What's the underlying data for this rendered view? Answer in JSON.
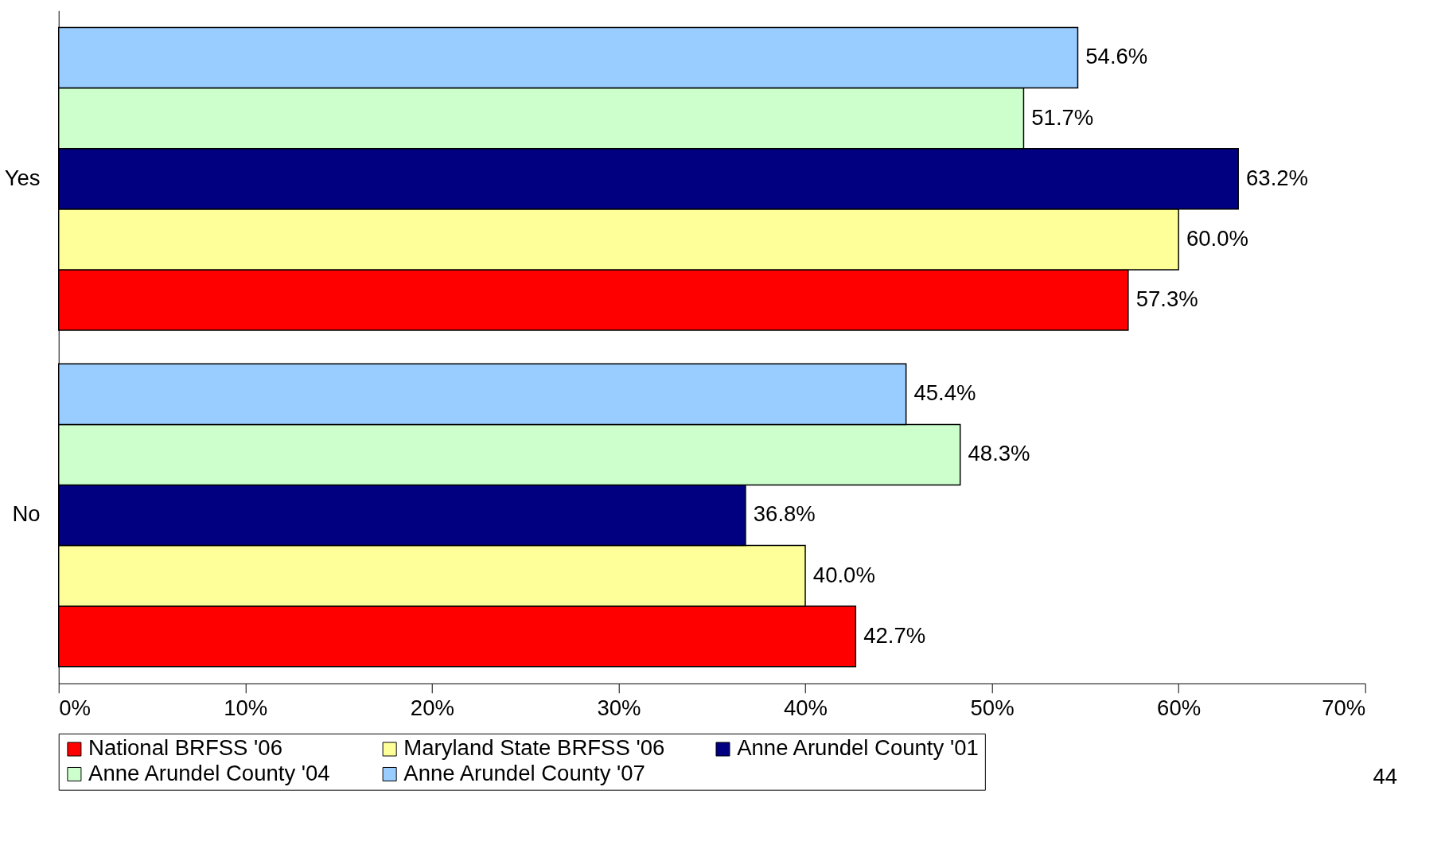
{
  "chart_data": {
    "type": "bar",
    "orientation": "horizontal",
    "categories": [
      "Yes",
      "No"
    ],
    "series": [
      {
        "name": "National BRFSS '06",
        "color": "#ff0000",
        "values": [
          57.3,
          42.7
        ],
        "value_labels": [
          "57.3%",
          "42.7%"
        ]
      },
      {
        "name": "Maryland State BRFSS '06",
        "color": "#ffff99",
        "values": [
          60.0,
          40.0
        ],
        "value_labels": [
          "60.0%",
          "40.0%"
        ]
      },
      {
        "name": "Anne Arundel County '01",
        "color": "#000080",
        "values": [
          63.2,
          36.8
        ],
        "value_labels": [
          "63.2%",
          "36.8%"
        ]
      },
      {
        "name": "Anne Arundel County '04",
        "color": "#ccffcc",
        "values": [
          51.7,
          48.3
        ],
        "value_labels": [
          "51.7%",
          "48.3%"
        ]
      },
      {
        "name": "Anne Arundel County '07",
        "color": "#99ccff",
        "values": [
          54.6,
          45.4
        ],
        "value_labels": [
          "54.6%",
          "45.4%"
        ]
      }
    ],
    "xlim": [
      0,
      70
    ],
    "xticks": [
      {
        "value": 0,
        "label": "0%"
      },
      {
        "value": 10,
        "label": "10%"
      },
      {
        "value": 20,
        "label": "20%"
      },
      {
        "value": 30,
        "label": "30%"
      },
      {
        "value": 40,
        "label": "40%"
      },
      {
        "value": 50,
        "label": "50%"
      },
      {
        "value": 60,
        "label": "60%"
      },
      {
        "value": 70,
        "label": "70%"
      }
    ],
    "grid": false,
    "legend": "bottom",
    "annotations": [
      "44"
    ]
  }
}
